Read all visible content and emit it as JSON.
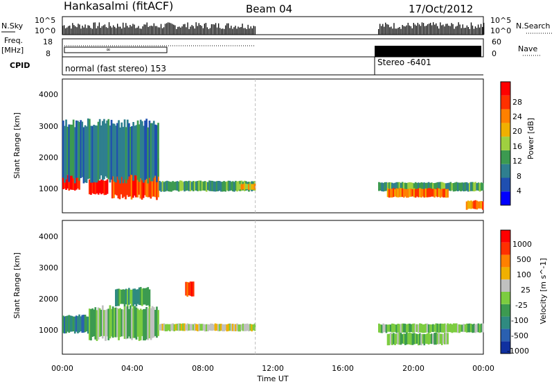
{
  "header": {
    "station": "Hankasalmi (fitACF)",
    "beam": "Beam 04",
    "date": "17/Oct/2012"
  },
  "summary_panels": {
    "nsky_label": "N.Sky",
    "nsky_ticks": [
      "10^5",
      "10^0"
    ],
    "nsearch_label": "N.Search",
    "nsearch_ticks": [
      "10^5",
      "10^0"
    ],
    "freq_label": "Freq.",
    "freq_unit": "[MHz]",
    "freq_ticks": [
      "18",
      "8"
    ],
    "nave_label": "Nave",
    "nave_ticks": [
      "60",
      "0"
    ],
    "cpid_label": "CPID",
    "cpid_segments": [
      {
        "label": "normal (fast stereo) 153",
        "start_h": 0,
        "end_h": 11
      },
      {
        "label": "Stereo -6401",
        "start_h": 18,
        "end_h": 24
      }
    ],
    "gap": {
      "start_h": 11,
      "end_h": 18
    }
  },
  "x_axis": {
    "label": "Time UT",
    "ticks": [
      "00:00",
      "04:00",
      "08:00",
      "12:00",
      "16:00",
      "20:00",
      "00:00"
    ]
  },
  "panels": [
    {
      "id": "power",
      "ylabel": "Slant Range [km]",
      "yticks": [
        "4000",
        "3000",
        "2000",
        "1000"
      ],
      "colorbar_title": "Power [dB]",
      "colorbar_ticks": [
        "28",
        "24",
        "20",
        "16",
        "12",
        "8",
        "4"
      ],
      "colors": [
        "#0000ff",
        "#1f4fb0",
        "#2f7f8f",
        "#3c9a50",
        "#9fd040",
        "#f0b000",
        "#ff8000",
        "#ff3000",
        "#ff0000"
      ]
    },
    {
      "id": "velocity",
      "ylabel": "Slant Range [km]",
      "yticks": [
        "4000",
        "3000",
        "2000",
        "1000"
      ],
      "colorbar_title": "Velocity [m s^-1]",
      "colorbar_ticks": [
        "1000",
        "500",
        "100",
        "25",
        "-25",
        "-100",
        "-500",
        "-1000"
      ],
      "colors": [
        "#1030a0",
        "#2a60b0",
        "#2f8a80",
        "#3c9a50",
        "#7ccc40",
        "#c0c0c0",
        "#f0b000",
        "#ff8000",
        "#ff3000",
        "#ff0000"
      ]
    }
  ],
  "chart_data": [
    {
      "type": "heatmap",
      "title": "Power [dB]",
      "xlabel": "Time UT",
      "ylabel": "Slant Range [km]",
      "x_range_h": [
        0,
        24
      ],
      "y_range_km": [
        180,
        4600
      ],
      "blobs": [
        {
          "t0": 0.0,
          "t1": 1.0,
          "r0": 950,
          "r1": 1500,
          "level": 8
        },
        {
          "t0": 1.5,
          "t1": 2.6,
          "r0": 800,
          "r1": 1300,
          "level": 8
        },
        {
          "t0": 2.8,
          "t1": 5.5,
          "r0": 700,
          "r1": 2000,
          "level": 7
        },
        {
          "t0": 0.0,
          "t1": 5.5,
          "r0": 1300,
          "r1": 3300,
          "level": 2
        },
        {
          "t0": 5.5,
          "t1": 11.0,
          "r0": 900,
          "r1": 1250,
          "level": 3
        },
        {
          "t0": 10.0,
          "t1": 11.0,
          "r0": 950,
          "r1": 1150,
          "level": 5
        },
        {
          "t0": 18.0,
          "t1": 24.0,
          "r0": 900,
          "r1": 1200,
          "level": 3
        },
        {
          "t0": 18.5,
          "t1": 22.0,
          "r0": 700,
          "r1": 1000,
          "level": 6
        },
        {
          "t0": 23.0,
          "t1": 24.0,
          "r0": 300,
          "r1": 600,
          "level": 6
        }
      ]
    },
    {
      "type": "heatmap",
      "title": "Velocity [m s^-1]",
      "xlabel": "Time UT",
      "ylabel": "Slant Range [km]",
      "x_range_h": [
        0,
        24
      ],
      "y_range_km": [
        180,
        4600
      ],
      "blobs": [
        {
          "t0": 0.0,
          "t1": 1.5,
          "r0": 900,
          "r1": 1500,
          "level": 2
        },
        {
          "t0": 1.5,
          "t1": 5.5,
          "r0": 700,
          "r1": 1800,
          "level": 4
        },
        {
          "t0": 5.5,
          "t1": 11.0,
          "r0": 950,
          "r1": 1200,
          "level": 5
        },
        {
          "t0": 3.0,
          "t1": 5.0,
          "r0": 1800,
          "r1": 2400,
          "level": 3
        },
        {
          "t0": 7.0,
          "t1": 7.5,
          "r0": 2100,
          "r1": 2600,
          "level": 8
        },
        {
          "t0": 18.0,
          "t1": 24.0,
          "r0": 900,
          "r1": 1200,
          "level": 4
        },
        {
          "t0": 18.5,
          "t1": 22.0,
          "r0": 500,
          "r1": 900,
          "level": 4
        }
      ]
    }
  ]
}
